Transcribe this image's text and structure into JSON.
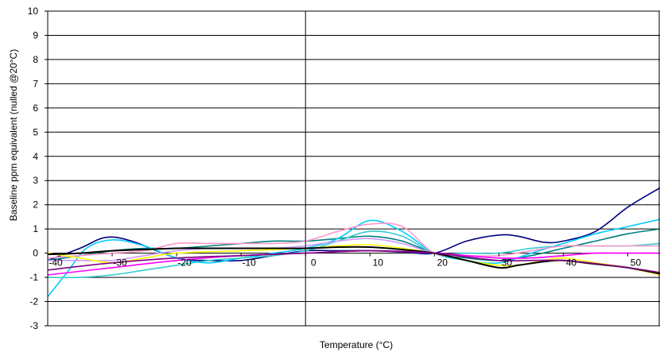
{
  "chart_data": {
    "type": "line",
    "title": "",
    "xlabel": "Temperature (°C)",
    "ylabel": "Baseline ppm equivalent (nulled @20°C)",
    "xlim": [
      -40,
      55
    ],
    "ylim": [
      -3,
      10
    ],
    "x_ticks": [
      -40,
      -30,
      -20,
      -10,
      0,
      10,
      20,
      30,
      40,
      50
    ],
    "x_tick_labels": [
      "-40",
      "-30",
      "-20",
      "-10",
      "0",
      "10",
      "20",
      "30",
      "40",
      "50"
    ],
    "y_ticks": [
      -3,
      -2,
      -1,
      0,
      1,
      2,
      3,
      4,
      5,
      6,
      7,
      8,
      9,
      10
    ],
    "y_tick_labels": [
      "-3",
      "-2",
      "-1",
      "0",
      "1",
      "2",
      "3",
      "4",
      "5",
      "6",
      "7",
      "8",
      "9",
      "10"
    ],
    "grid": {
      "horizontal": true,
      "vertical": false
    },
    "zero_line_x": 0,
    "legend": "none",
    "series": [
      {
        "color": "#000080",
        "x": [
          -40,
          -35,
          -31,
          -27,
          -20,
          -15,
          -10,
          -5,
          0,
          5,
          10,
          15,
          20,
          25,
          30,
          33,
          37,
          40,
          45,
          50,
          55
        ],
        "y": [
          -0.3,
          0.2,
          0.65,
          0.5,
          -0.2,
          -0.3,
          -0.3,
          -0.1,
          0.1,
          0.1,
          0.1,
          0.05,
          0,
          0.5,
          0.75,
          0.7,
          0.45,
          0.5,
          0.9,
          1.9,
          2.7
        ]
      },
      {
        "color": "#008080",
        "x": [
          -40,
          -35,
          -30,
          -25,
          -20,
          -10,
          -5,
          0,
          5,
          10,
          15,
          20,
          25,
          30,
          35,
          40,
          45,
          50,
          55
        ],
        "y": [
          -0.3,
          -0.1,
          0.1,
          0.2,
          0.2,
          0.4,
          0.5,
          0.5,
          0.6,
          0.7,
          0.5,
          0,
          -0.2,
          -0.3,
          -0.1,
          0.2,
          0.5,
          0.8,
          1.0
        ]
      },
      {
        "color": "#00ccff",
        "x": [
          -40,
          -37,
          -34,
          -30,
          -25,
          -20,
          -15,
          -10,
          -5,
          0,
          5,
          10,
          15,
          20,
          25,
          30,
          35,
          40,
          45,
          50,
          55
        ],
        "y": [
          -1.8,
          -0.8,
          0.2,
          0.55,
          0.3,
          -0.2,
          -0.4,
          -0.2,
          0,
          0.2,
          0.6,
          1.35,
          0.9,
          0,
          -0.3,
          -0.4,
          0,
          0.4,
          0.8,
          1.1,
          1.4
        ]
      },
      {
        "color": "#33cccc",
        "x": [
          -40,
          -35,
          -30,
          -25,
          -20,
          -15,
          -10,
          -5,
          0,
          5,
          10,
          15,
          20,
          25,
          30,
          35,
          40,
          45,
          50,
          55
        ],
        "y": [
          -1.0,
          -1.0,
          -0.9,
          -0.7,
          -0.5,
          -0.3,
          -0.2,
          -0.1,
          0.1,
          0.5,
          0.9,
          0.7,
          0,
          0,
          0,
          0.2,
          0.3,
          0.3,
          0.3,
          0.4
        ]
      },
      {
        "color": "#ff99cc",
        "x": [
          -40,
          -35,
          -30,
          -25,
          -20,
          -15,
          -10,
          -5,
          0,
          5,
          10,
          15,
          20,
          25,
          30,
          35,
          40,
          45,
          50,
          55
        ],
        "y": [
          -0.2,
          -0.1,
          0,
          0.1,
          0.4,
          0.4,
          0.4,
          0.4,
          0.5,
          0.9,
          1.2,
          1.1,
          0,
          -0.1,
          -0.1,
          0.1,
          0.3,
          0.3,
          0.3,
          0.3
        ]
      },
      {
        "color": "#cc99ff",
        "x": [
          -40,
          -35,
          -30,
          -25,
          -20,
          -15,
          -10,
          -5,
          0,
          5,
          10,
          15,
          20,
          25,
          30,
          35,
          40,
          45,
          50,
          55
        ],
        "y": [
          -0.3,
          -0.3,
          -0.3,
          -0.1,
          0.1,
          0.2,
          0.2,
          0.2,
          0.3,
          0.5,
          0.6,
          0.4,
          0,
          -0.1,
          -0.2,
          -0.2,
          -0.1,
          0,
          0,
          0
        ]
      },
      {
        "color": "#ff00ff",
        "x": [
          -40,
          -30,
          -20,
          -10,
          0,
          10,
          20,
          25,
          30,
          35,
          40,
          45,
          50,
          55
        ],
        "y": [
          -0.9,
          -0.6,
          -0.3,
          -0.1,
          0,
          0.1,
          0,
          -0.1,
          -0.2,
          -0.2,
          -0.1,
          0,
          0,
          0
        ]
      },
      {
        "color": "#ffff00",
        "x": [
          -40,
          -35,
          -30,
          -25,
          -20,
          -10,
          0,
          5,
          10,
          15,
          20,
          25,
          30,
          33,
          37,
          40,
          45,
          50,
          55
        ],
        "y": [
          0,
          -0.2,
          -0.4,
          -0.2,
          0,
          0.1,
          0.2,
          0.3,
          0.35,
          0.2,
          0,
          -0.3,
          -0.5,
          -0.5,
          -0.3,
          -0.2,
          -0.4,
          -0.6,
          -0.9
        ]
      },
      {
        "color": "#000000",
        "x": [
          -40,
          -35,
          -30,
          -25,
          -20,
          -15,
          -10,
          -5,
          0,
          5,
          10,
          15,
          20,
          25,
          30,
          33,
          37,
          40,
          45,
          50,
          55
        ],
        "y": [
          -0.05,
          0,
          0.1,
          0.15,
          0.2,
          0.2,
          0.2,
          0.2,
          0.2,
          0.25,
          0.25,
          0.15,
          0,
          -0.3,
          -0.6,
          -0.5,
          -0.35,
          -0.3,
          -0.45,
          -0.6,
          -0.85
        ]
      },
      {
        "color": "#800080",
        "x": [
          -40,
          -30,
          -20,
          -10,
          0,
          10,
          20,
          30,
          40,
          50,
          55
        ],
        "y": [
          -0.7,
          -0.4,
          -0.2,
          -0.1,
          0,
          0.1,
          0,
          -0.3,
          -0.3,
          -0.6,
          -0.8
        ]
      }
    ]
  }
}
